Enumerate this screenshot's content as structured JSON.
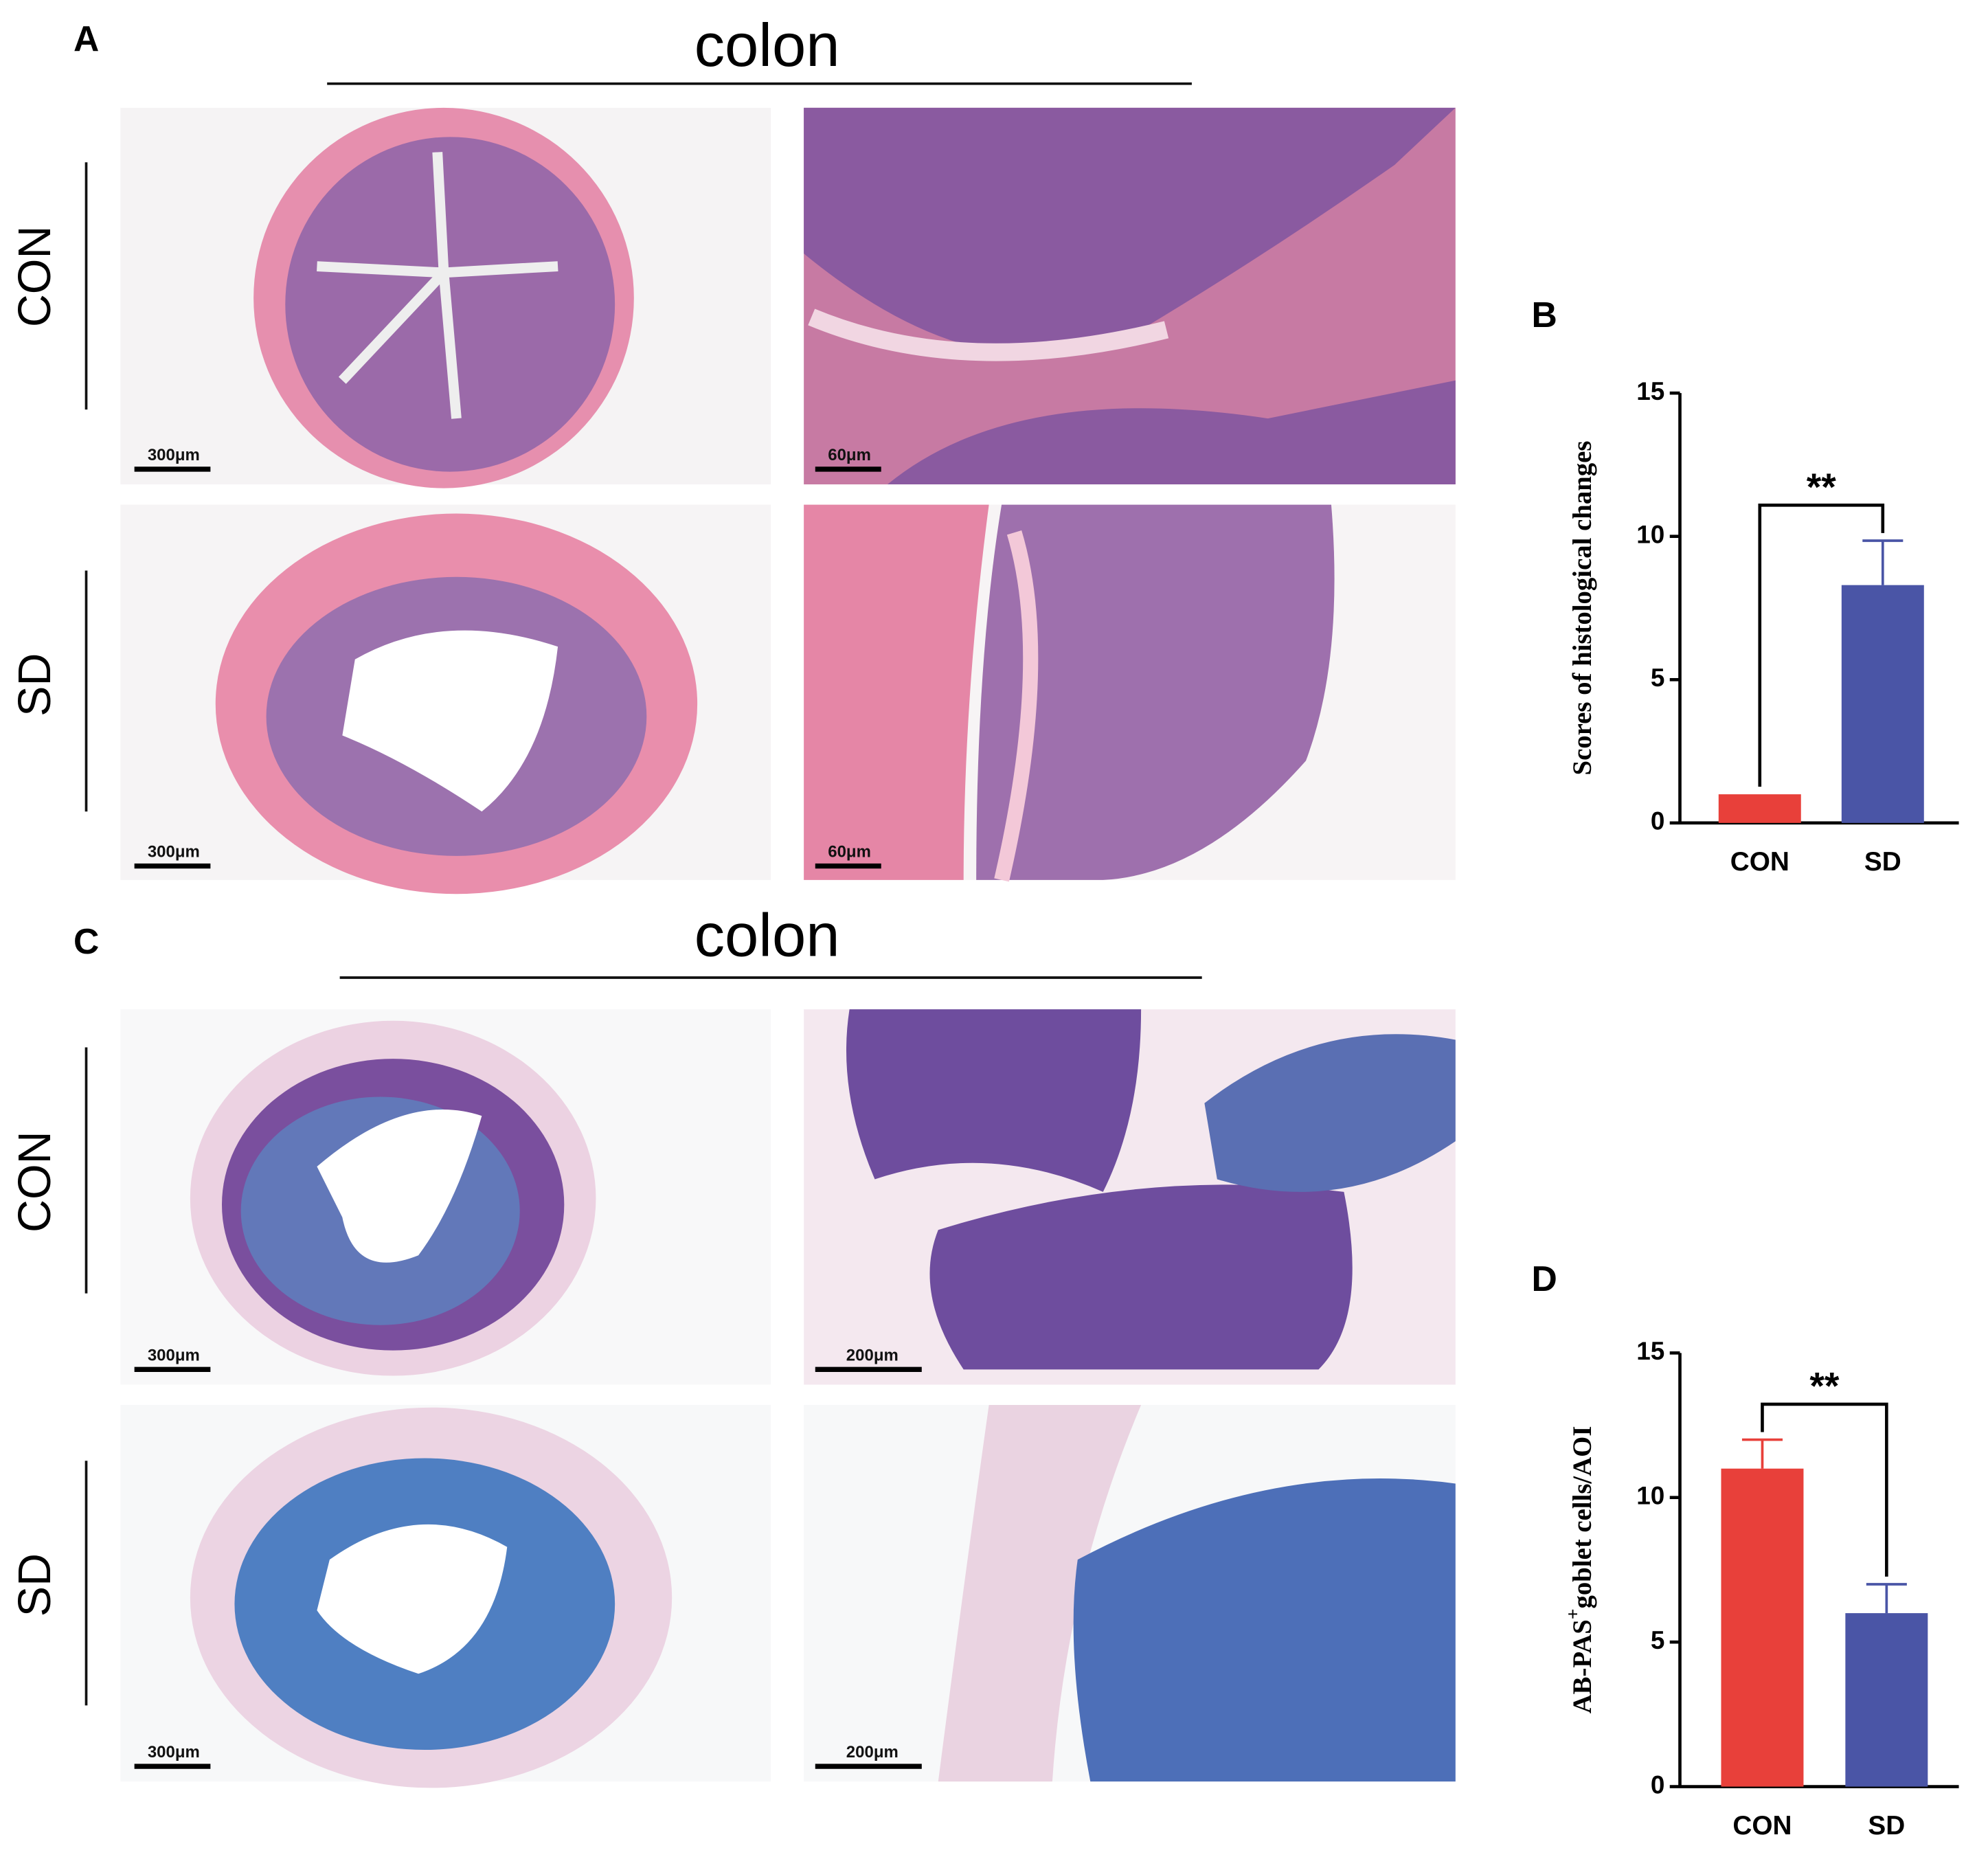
{
  "panels": {
    "A": {
      "letter": "A",
      "title": "colon",
      "rows": [
        "CON",
        "SD"
      ],
      "scale_bars": [
        "300μm",
        "60μm",
        "300μm",
        "60μm"
      ]
    },
    "C": {
      "letter": "C",
      "title": "colon",
      "rows": [
        "CON",
        "SD"
      ],
      "scale_bars": [
        "300μm",
        "200μm",
        "300μm",
        "200μm"
      ]
    }
  },
  "chart_data": [
    {
      "type": "bar",
      "panel": "B",
      "ylabel": "Scores of histological changes",
      "categories": [
        "CON",
        "SD"
      ],
      "values": [
        1,
        8.3
      ],
      "errors": [
        null,
        1.55
      ],
      "colors": [
        "#e8403a",
        "#4a55a6"
      ],
      "ylim": [
        0,
        15
      ],
      "yticks": [
        0,
        5,
        10,
        15
      ],
      "annotation": "**"
    },
    {
      "type": "bar",
      "panel": "D",
      "ylabel": "AB-PAS",
      "ylabel_sup": "+",
      "ylabel_rest": "goblet cells/AOI",
      "categories": [
        "CON",
        "SD"
      ],
      "values": [
        11,
        6
      ],
      "errors": [
        1,
        1
      ],
      "colors": [
        "#e8403a",
        "#4a55a6"
      ],
      "ylim": [
        0,
        15
      ],
      "yticks": [
        0,
        5,
        10,
        15
      ],
      "annotation": "**"
    }
  ]
}
